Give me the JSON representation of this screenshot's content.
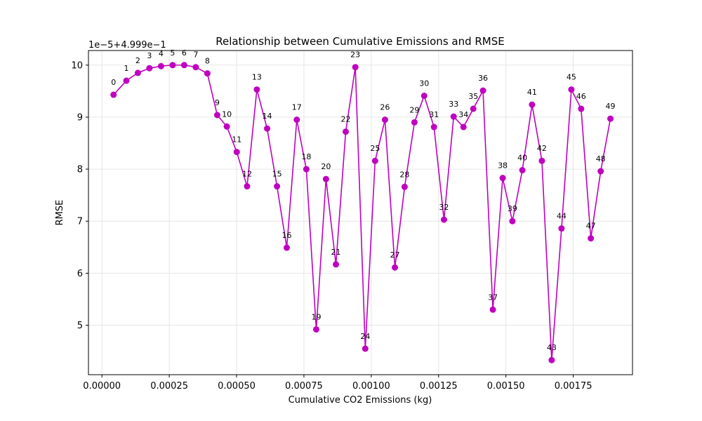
{
  "chart_data": {
    "type": "line",
    "title": "Relationship between Cumulative Emissions and RMSE",
    "xlabel": "Cumulative CO2 Emissions (kg)",
    "ylabel": "RMSE",
    "y_offset_text": "1e−5+4.999e−1",
    "xlim": [
      -5e-05,
      0.00197
    ],
    "ylim": [
      4.05,
      10.28
    ],
    "x_ticks": [
      0.0,
      0.00025,
      0.0005,
      0.00075,
      0.001,
      0.00125,
      0.0015,
      0.00175
    ],
    "x_tick_labels": [
      "0.00000",
      "0.00025",
      "0.00050",
      "0.00075",
      "0.00100",
      "0.00125",
      "0.00150",
      "0.00175"
    ],
    "y_ticks": [
      5,
      6,
      7,
      8,
      9,
      10
    ],
    "y_tick_labels": [
      "5",
      "6",
      "7",
      "8",
      "9",
      "10"
    ],
    "grid": true,
    "color": "#bf00bf",
    "series": [
      {
        "x": [
          4.32e-05,
          9.07e-05,
          0.0001335,
          0.0001765,
          0.0002195,
          0.0002625,
          0.0003055,
          0.0003485,
          0.0003915,
          0.0004281,
          0.0004637,
          0.0005006,
          0.000539,
          0.0005753,
          0.0006134,
          0.0006501,
          0.0006863,
          0.0007235,
          0.000759,
          0.0007958,
          0.000832,
          0.0008688,
          0.0009052,
          0.0009409,
          0.0009778,
          0.0010143,
          0.001051,
          0.0010878,
          0.0011239,
          0.0011604,
          0.0011965,
          0.001233,
          0.00127,
          0.001306,
          0.0013424,
          0.0013789,
          0.001415,
          0.0014515,
          0.001488,
          0.001524,
          0.001561,
          0.001597,
          0.0016336,
          0.00167,
          0.0017065,
          0.001743,
          0.0017792,
          0.0018153,
          0.0018519,
          0.001888
        ],
        "values": [
          9.43,
          9.7,
          9.85,
          9.94,
          9.98,
          10.0,
          10.0,
          9.96,
          9.84,
          9.04,
          8.82,
          8.33,
          7.67,
          9.53,
          8.78,
          7.67,
          6.49,
          8.95,
          8.0,
          4.92,
          7.81,
          6.17,
          8.72,
          9.96,
          4.55,
          8.16,
          8.95,
          6.11,
          7.66,
          8.9,
          9.41,
          8.81,
          7.03,
          9.01,
          8.81,
          9.16,
          9.51,
          5.3,
          7.83,
          7.0,
          7.98,
          9.24,
          8.16,
          4.33,
          6.86,
          9.53,
          9.16,
          6.67,
          7.96,
          8.97
        ],
        "labels": [
          "0",
          "1",
          "2",
          "3",
          "4",
          "5",
          "6",
          "7",
          "8",
          "9",
          "10",
          "11",
          "12",
          "13",
          "14",
          "15",
          "16",
          "17",
          "18",
          "19",
          "20",
          "21",
          "22",
          "23",
          "24",
          "25",
          "26",
          "27",
          "28",
          "29",
          "30",
          "31",
          "32",
          "33",
          "34",
          "35",
          "36",
          "37",
          "38",
          "39",
          "40",
          "41",
          "42",
          "43",
          "44",
          "45",
          "46",
          "47",
          "48",
          "49"
        ]
      }
    ]
  }
}
